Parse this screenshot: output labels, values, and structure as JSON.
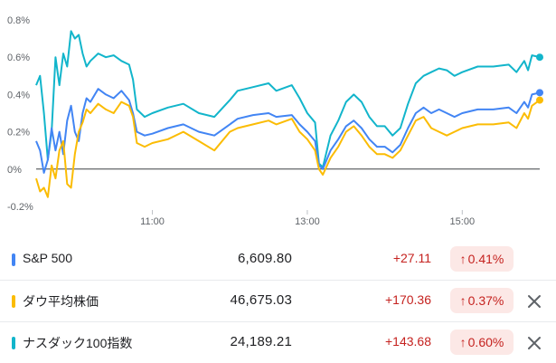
{
  "chart_data": {
    "type": "line",
    "ylim": [
      -0.2,
      0.8
    ],
    "yticks": [
      "0.8%",
      "0.6%",
      "0.4%",
      "0.2%",
      "0%",
      "-0.2%"
    ],
    "ytick_values": [
      0.8,
      0.6,
      0.4,
      0.2,
      0,
      -0.2
    ],
    "xtick_labels": [
      "11:00",
      "13:00",
      "15:00"
    ],
    "xtick_times": [
      11,
      13,
      15
    ],
    "xrange": [
      9.5,
      16.0
    ],
    "series": [
      {
        "name": "ナスダック100指数",
        "color": "#12b5cb",
        "points": [
          [
            9.5,
            0.45
          ],
          [
            9.55,
            0.5
          ],
          [
            9.6,
            0.3
          ],
          [
            9.65,
            0.05
          ],
          [
            9.7,
            0.2
          ],
          [
            9.75,
            0.6
          ],
          [
            9.8,
            0.45
          ],
          [
            9.85,
            0.62
          ],
          [
            9.9,
            0.55
          ],
          [
            9.95,
            0.74
          ],
          [
            10.0,
            0.7
          ],
          [
            10.05,
            0.72
          ],
          [
            10.1,
            0.62
          ],
          [
            10.15,
            0.55
          ],
          [
            10.2,
            0.58
          ],
          [
            10.3,
            0.62
          ],
          [
            10.4,
            0.6
          ],
          [
            10.5,
            0.61
          ],
          [
            10.6,
            0.58
          ],
          [
            10.7,
            0.56
          ],
          [
            10.75,
            0.48
          ],
          [
            10.8,
            0.32
          ],
          [
            10.9,
            0.28
          ],
          [
            11.0,
            0.3
          ],
          [
            11.2,
            0.33
          ],
          [
            11.4,
            0.35
          ],
          [
            11.6,
            0.3
          ],
          [
            11.8,
            0.28
          ],
          [
            12.0,
            0.37
          ],
          [
            12.1,
            0.42
          ],
          [
            12.3,
            0.44
          ],
          [
            12.5,
            0.46
          ],
          [
            12.6,
            0.42
          ],
          [
            12.8,
            0.45
          ],
          [
            12.9,
            0.38
          ],
          [
            13.0,
            0.3
          ],
          [
            13.1,
            0.25
          ],
          [
            13.15,
            0.03
          ],
          [
            13.2,
            0.01
          ],
          [
            13.3,
            0.18
          ],
          [
            13.4,
            0.26
          ],
          [
            13.5,
            0.36
          ],
          [
            13.6,
            0.4
          ],
          [
            13.7,
            0.36
          ],
          [
            13.8,
            0.28
          ],
          [
            13.9,
            0.23
          ],
          [
            14.0,
            0.23
          ],
          [
            14.1,
            0.18
          ],
          [
            14.2,
            0.22
          ],
          [
            14.3,
            0.35
          ],
          [
            14.4,
            0.46
          ],
          [
            14.5,
            0.5
          ],
          [
            14.6,
            0.52
          ],
          [
            14.7,
            0.54
          ],
          [
            14.8,
            0.53
          ],
          [
            14.9,
            0.5
          ],
          [
            15.0,
            0.52
          ],
          [
            15.2,
            0.55
          ],
          [
            15.4,
            0.55
          ],
          [
            15.6,
            0.56
          ],
          [
            15.7,
            0.52
          ],
          [
            15.8,
            0.58
          ],
          [
            15.85,
            0.53
          ],
          [
            15.9,
            0.61
          ],
          [
            16.0,
            0.6
          ]
        ]
      },
      {
        "name": "S&P 500",
        "color": "#4285f4",
        "points": [
          [
            9.5,
            0.15
          ],
          [
            9.55,
            0.1
          ],
          [
            9.6,
            -0.02
          ],
          [
            9.65,
            0.05
          ],
          [
            9.7,
            0.22
          ],
          [
            9.75,
            0.1
          ],
          [
            9.8,
            0.2
          ],
          [
            9.85,
            0.08
          ],
          [
            9.9,
            0.26
          ],
          [
            9.95,
            0.34
          ],
          [
            10.0,
            0.2
          ],
          [
            10.05,
            0.15
          ],
          [
            10.1,
            0.3
          ],
          [
            10.15,
            0.38
          ],
          [
            10.2,
            0.36
          ],
          [
            10.3,
            0.43
          ],
          [
            10.4,
            0.4
          ],
          [
            10.5,
            0.38
          ],
          [
            10.6,
            0.42
          ],
          [
            10.7,
            0.37
          ],
          [
            10.75,
            0.3
          ],
          [
            10.8,
            0.2
          ],
          [
            10.9,
            0.18
          ],
          [
            11.0,
            0.19
          ],
          [
            11.2,
            0.22
          ],
          [
            11.4,
            0.24
          ],
          [
            11.6,
            0.2
          ],
          [
            11.8,
            0.18
          ],
          [
            12.0,
            0.24
          ],
          [
            12.1,
            0.27
          ],
          [
            12.3,
            0.29
          ],
          [
            12.5,
            0.3
          ],
          [
            12.6,
            0.28
          ],
          [
            12.8,
            0.29
          ],
          [
            12.9,
            0.24
          ],
          [
            13.0,
            0.2
          ],
          [
            13.1,
            0.15
          ],
          [
            13.15,
            0.02
          ],
          [
            13.2,
            0.0
          ],
          [
            13.3,
            0.1
          ],
          [
            13.4,
            0.16
          ],
          [
            13.5,
            0.23
          ],
          [
            13.6,
            0.26
          ],
          [
            13.7,
            0.22
          ],
          [
            13.8,
            0.16
          ],
          [
            13.9,
            0.12
          ],
          [
            14.0,
            0.12
          ],
          [
            14.1,
            0.09
          ],
          [
            14.2,
            0.13
          ],
          [
            14.3,
            0.22
          ],
          [
            14.4,
            0.3
          ],
          [
            14.5,
            0.33
          ],
          [
            14.6,
            0.3
          ],
          [
            14.7,
            0.32
          ],
          [
            14.8,
            0.3
          ],
          [
            14.9,
            0.28
          ],
          [
            15.0,
            0.3
          ],
          [
            15.2,
            0.32
          ],
          [
            15.4,
            0.32
          ],
          [
            15.6,
            0.33
          ],
          [
            15.7,
            0.3
          ],
          [
            15.8,
            0.36
          ],
          [
            15.85,
            0.33
          ],
          [
            15.9,
            0.4
          ],
          [
            16.0,
            0.41
          ]
        ]
      },
      {
        "name": "ダウ平均株価",
        "color": "#fbbc04",
        "points": [
          [
            9.5,
            -0.05
          ],
          [
            9.55,
            -0.12
          ],
          [
            9.6,
            -0.1
          ],
          [
            9.65,
            -0.15
          ],
          [
            9.7,
            0.02
          ],
          [
            9.75,
            -0.05
          ],
          [
            9.8,
            0.1
          ],
          [
            9.85,
            0.15
          ],
          [
            9.9,
            -0.08
          ],
          [
            9.95,
            -0.1
          ],
          [
            10.0,
            0.08
          ],
          [
            10.05,
            0.2
          ],
          [
            10.1,
            0.25
          ],
          [
            10.15,
            0.32
          ],
          [
            10.2,
            0.3
          ],
          [
            10.3,
            0.35
          ],
          [
            10.4,
            0.32
          ],
          [
            10.5,
            0.3
          ],
          [
            10.6,
            0.36
          ],
          [
            10.7,
            0.34
          ],
          [
            10.75,
            0.28
          ],
          [
            10.8,
            0.14
          ],
          [
            10.9,
            0.12
          ],
          [
            11.0,
            0.14
          ],
          [
            11.2,
            0.16
          ],
          [
            11.4,
            0.2
          ],
          [
            11.6,
            0.15
          ],
          [
            11.8,
            0.1
          ],
          [
            12.0,
            0.2
          ],
          [
            12.1,
            0.22
          ],
          [
            12.3,
            0.24
          ],
          [
            12.5,
            0.26
          ],
          [
            12.6,
            0.24
          ],
          [
            12.8,
            0.27
          ],
          [
            12.9,
            0.2
          ],
          [
            13.0,
            0.16
          ],
          [
            13.1,
            0.1
          ],
          [
            13.15,
            0.0
          ],
          [
            13.2,
            -0.03
          ],
          [
            13.3,
            0.06
          ],
          [
            13.4,
            0.12
          ],
          [
            13.5,
            0.2
          ],
          [
            13.6,
            0.23
          ],
          [
            13.7,
            0.18
          ],
          [
            13.8,
            0.12
          ],
          [
            13.9,
            0.08
          ],
          [
            14.0,
            0.08
          ],
          [
            14.1,
            0.06
          ],
          [
            14.2,
            0.1
          ],
          [
            14.3,
            0.18
          ],
          [
            14.4,
            0.26
          ],
          [
            14.5,
            0.28
          ],
          [
            14.6,
            0.22
          ],
          [
            14.7,
            0.2
          ],
          [
            14.8,
            0.18
          ],
          [
            14.9,
            0.2
          ],
          [
            15.0,
            0.22
          ],
          [
            15.2,
            0.24
          ],
          [
            15.4,
            0.24
          ],
          [
            15.6,
            0.25
          ],
          [
            15.7,
            0.22
          ],
          [
            15.8,
            0.3
          ],
          [
            15.85,
            0.27
          ],
          [
            15.9,
            0.34
          ],
          [
            16.0,
            0.37
          ]
        ]
      }
    ]
  },
  "rows": [
    {
      "name": "S&P 500",
      "color": "#4285f4",
      "price": "6,609.80",
      "change": "+27.11",
      "pct": "0.41%",
      "arrow": "↑",
      "close_icon": false
    },
    {
      "name": "ダウ平均株価",
      "color": "#fbbc04",
      "price": "46,675.03",
      "change": "+170.36",
      "pct": "0.37%",
      "arrow": "↑",
      "close_icon": true
    },
    {
      "name": "ナスダック100指数",
      "color": "#12b5cb",
      "price": "24,189.21",
      "change": "+143.68",
      "pct": "0.60%",
      "arrow": "↑",
      "close_icon": true
    }
  ]
}
